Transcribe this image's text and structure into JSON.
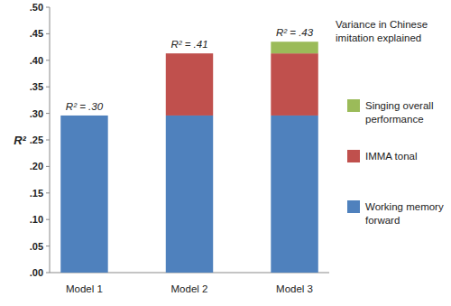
{
  "chart_data": {
    "type": "bar",
    "stacked": true,
    "grid": false,
    "legend": "right",
    "y_label": "R²",
    "legend_title": "Variance in Chinese imitation explained",
    "categories": [
      "Model 1",
      "Model 2",
      "Model 3"
    ],
    "series": [
      {
        "name": "Working memory forward",
        "color": "#4f81bd",
        "values": [
          0.296,
          0.296,
          0.296
        ]
      },
      {
        "name": "IMMA tonal",
        "color": "#c0504d",
        "values": [
          null,
          0.117,
          0.117
        ]
      },
      {
        "name": "Singing overall performance",
        "color": "#9bbb59",
        "values": [
          null,
          null,
          0.022
        ]
      }
    ],
    "annotations": [
      "R² = .30",
      "R² = .41",
      "R² = .43"
    ],
    "ylim": [
      0,
      0.5
    ],
    "yticks": [
      {
        "value": 0,
        "label": ".00"
      },
      {
        "value": 0.05,
        "label": ".05"
      },
      {
        "value": 0.1,
        "label": ".10"
      },
      {
        "value": 0.15,
        "label": ".15"
      },
      {
        "value": 0.2,
        "label": ".20"
      },
      {
        "value": 0.25,
        "label": ".25"
      },
      {
        "value": 0.3,
        "label": ".30"
      },
      {
        "value": 0.35,
        "label": ".35"
      },
      {
        "value": 0.4,
        "label": ".40"
      },
      {
        "value": 0.45,
        "label": ".45"
      },
      {
        "value": 0.5,
        "label": ".50"
      }
    ]
  }
}
